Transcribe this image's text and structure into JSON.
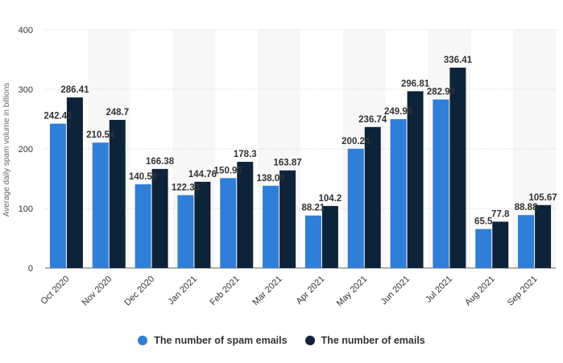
{
  "chart_data": {
    "type": "bar",
    "title": "",
    "xlabel": "",
    "ylabel": "Average daily spam volume in billions",
    "ylim": [
      0,
      400
    ],
    "yticks": [
      0,
      100,
      200,
      300,
      400
    ],
    "grid": true,
    "legend_position": "bottom",
    "categories": [
      "Oct 2020",
      "Nov 2020",
      "Dec 2020",
      "Jan 2021",
      "Feb 2021",
      "Mar 2021",
      "Apr 2021",
      "May 2021",
      "Jun 2021",
      "Jul 2021",
      "Aug 2021",
      "Sep 2021"
    ],
    "series": [
      {
        "name": "The number of spam emails",
        "color": "#2f7ed8",
        "values": [
          242.42,
          210.54,
          140.56,
          122.33,
          150.93,
          138.09,
          88.21,
          200.24,
          249.95,
          282.93,
          65.5,
          88.88
        ]
      },
      {
        "name": "The number of emails",
        "color": "#0d233a",
        "values": [
          286.41,
          248.7,
          166.38,
          144.76,
          178.3,
          163.87,
          104.2,
          236.74,
          296.81,
          336.41,
          77.8,
          105.67
        ]
      }
    ]
  }
}
